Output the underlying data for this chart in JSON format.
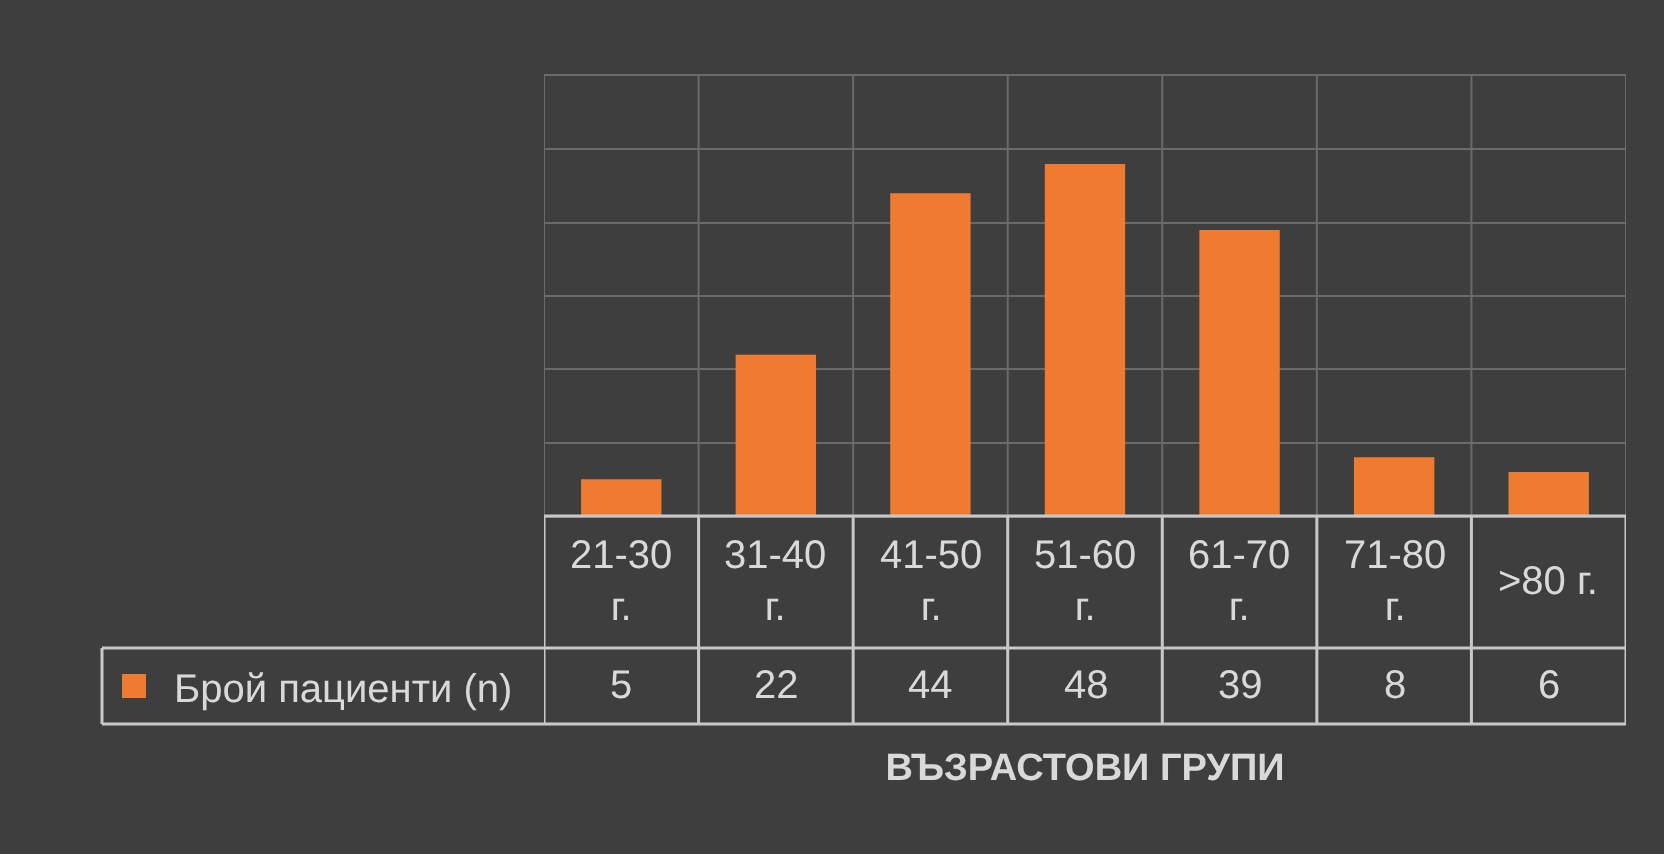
{
  "chart_data": {
    "type": "bar",
    "categories": [
      "21-30 г.",
      "31-40 г.",
      "41-50 г.",
      "51-60 г.",
      "61-70 г.",
      "71-80 г.",
      ">80 г."
    ],
    "series": [
      {
        "name": "Брой пациенти (n)",
        "color": "#ee7b30",
        "values": [
          5,
          22,
          44,
          48,
          39,
          8,
          6
        ]
      }
    ],
    "xlabel": "ВЪЗРАСТОВИ ГРУПИ",
    "ylim": [
      0,
      60
    ],
    "yticks": [
      {
        "value": 0,
        "label": null
      },
      {
        "value": 10,
        "label": null
      },
      {
        "value": 20,
        "label": null
      },
      {
        "value": 30,
        "label": null
      },
      {
        "value": 40,
        "label": null
      },
      {
        "value": 50,
        "label": null
      }
    ],
    "tick_labels": "x",
    "grid": true,
    "legend": "bottom",
    "data_labels": true
  }
}
